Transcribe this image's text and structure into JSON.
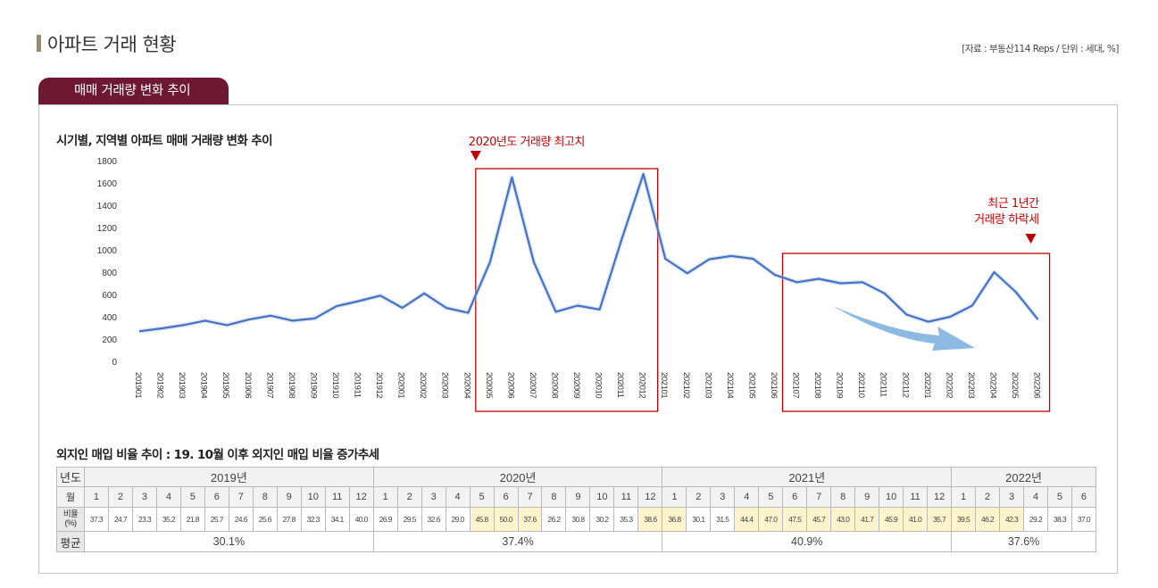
{
  "header": {
    "title": "아파트 거래 현황",
    "source": "[자료 : 부동산114 Reps / 단위 : 세대, %]"
  },
  "tab": {
    "label": "매매 거래량 변화 추이"
  },
  "colors": {
    "line": "#4472c4",
    "box": "#c00000",
    "arrow": "#7fb3e0",
    "tab": "#6e1831",
    "highlight": "#fdf3cc"
  },
  "chart_data": {
    "type": "line",
    "title": "시기별, 지역별 아파트 매매 거래량 변화 추이",
    "ylim": [
      0,
      1800
    ],
    "yticks": [
      0,
      200,
      400,
      600,
      800,
      1000,
      1200,
      1400,
      1600,
      1800
    ],
    "categories": [
      "201901",
      "201902",
      "201903",
      "201904",
      "201905",
      "201906",
      "201907",
      "201908",
      "201909",
      "201910",
      "201911",
      "201912",
      "202001",
      "202002",
      "202003",
      "202004",
      "202005",
      "202006",
      "202007",
      "202008",
      "202009",
      "202010",
      "202011",
      "202012",
      "202101",
      "202102",
      "202103",
      "202104",
      "202105",
      "202106",
      "202107",
      "202108",
      "202109",
      "202110",
      "202111",
      "202112",
      "202201",
      "202202",
      "202203",
      "202204",
      "202205",
      "202206"
    ],
    "series": [
      {
        "values": [
          270,
          295,
          325,
          365,
          325,
          375,
          410,
          365,
          385,
          495,
          540,
          590,
          480,
          610,
          480,
          435,
          890,
          1650,
          890,
          445,
          500,
          465,
          1090,
          1680,
          920,
          790,
          915,
          945,
          920,
          775,
          710,
          740,
          700,
          710,
          610,
          420,
          355,
          400,
          500,
          800,
          620,
          375
        ]
      }
    ],
    "annotations": [
      {
        "text": "2020년도 거래량 최고치",
        "box_from": "202005",
        "box_to": "202012"
      },
      {
        "text_lines": [
          "최근 1년간",
          "거래량 하락세"
        ],
        "box_from": "202107",
        "box_to": "202206"
      }
    ]
  },
  "table": {
    "title": "외지인 매입 비율 추이 : 19. 10월 이후 외지인 매입 비율 증가추세",
    "row_labels": {
      "year": "년도",
      "month": "월",
      "ratio": "비율 (%)",
      "avg": "평균"
    },
    "years": [
      {
        "label": "2019년",
        "months": [
          "1",
          "2",
          "3",
          "4",
          "5",
          "6",
          "7",
          "8",
          "9",
          "10",
          "11",
          "12"
        ],
        "ratios": [
          "37.3",
          "24.7",
          "23.3",
          "35.2",
          "21.8",
          "25.7",
          "24.6",
          "25.6",
          "27.8",
          "32.3",
          "34.1",
          "40.0"
        ],
        "highlight": [],
        "avg": "30.1%"
      },
      {
        "label": "2020년",
        "months": [
          "1",
          "2",
          "3",
          "4",
          "5",
          "6",
          "7",
          "8",
          "9",
          "10",
          "11",
          "12"
        ],
        "ratios": [
          "26.9",
          "29.5",
          "32.6",
          "29.0",
          "45.8",
          "50.0",
          "37.6",
          "26.2",
          "30.8",
          "30.2",
          "35.3",
          "38.6"
        ],
        "highlight": [
          4,
          5,
          6,
          11
        ],
        "avg": "37.4%"
      },
      {
        "label": "2021년",
        "months": [
          "1",
          "2",
          "3",
          "4",
          "5",
          "6",
          "7",
          "8",
          "9",
          "10",
          "11",
          "12"
        ],
        "ratios": [
          "36.8",
          "30.1",
          "31.5",
          "44.4",
          "47.0",
          "47.5",
          "45.7",
          "43.0",
          "41.7",
          "45.9",
          "41.0",
          "35.7"
        ],
        "highlight": [
          0,
          3,
          4,
          5,
          6,
          7,
          8,
          9,
          10,
          11
        ],
        "avg": "40.9%"
      },
      {
        "label": "2022년",
        "months": [
          "1",
          "2",
          "3",
          "4",
          "5",
          "6"
        ],
        "ratios": [
          "39.5",
          "46.2",
          "42.3",
          "29.2",
          "38.3",
          "37.0"
        ],
        "highlight": [
          0,
          1,
          2
        ],
        "avg": "37.6%"
      }
    ]
  }
}
